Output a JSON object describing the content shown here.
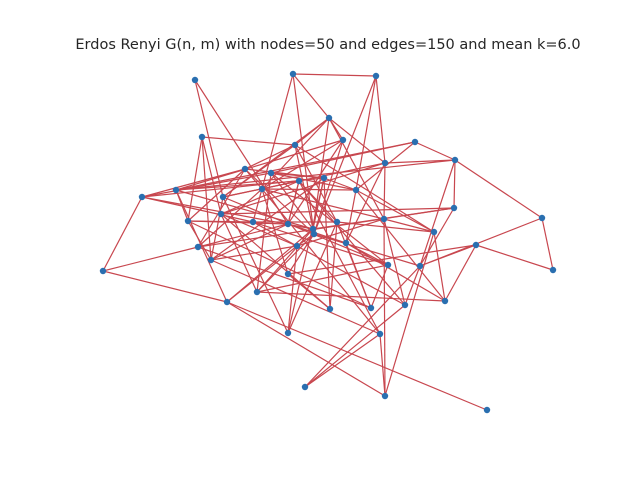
{
  "figure": {
    "title": "Erdos Renyi G(n, m) with nodes=50 and edges=150 and mean k=6.0"
  },
  "graph": {
    "node_count": 50,
    "edge_count": 150,
    "mean_degree": 6.0,
    "node_color": "#2a6fb0",
    "edge_color": "#c8474f"
  }
}
